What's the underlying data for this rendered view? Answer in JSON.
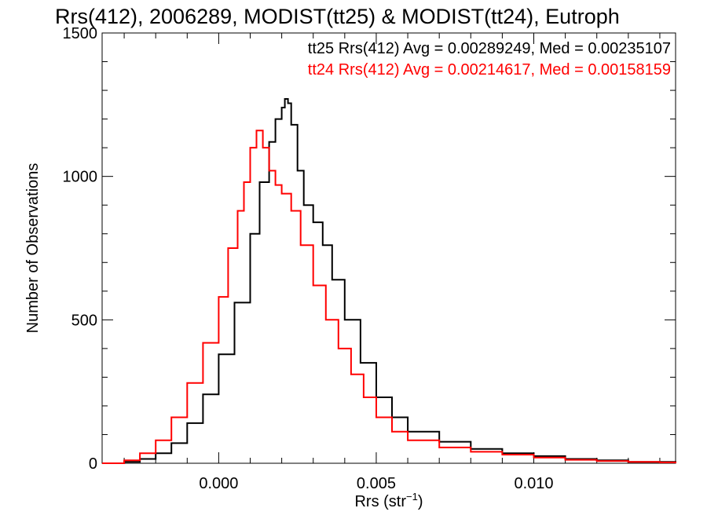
{
  "chart_data": {
    "type": "line",
    "step": true,
    "title": "Rrs(412), 2006289, MODIST(tt25) & MODIST(tt24), Eutroph",
    "xlabel": "Rrs (str",
    "xlabel_sup": "−1",
    "xlabel_end": ")",
    "ylabel": "Number of Observations",
    "xlim": [
      -0.0037,
      0.0145
    ],
    "ylim": [
      0,
      1500
    ],
    "xticks": [
      0.0,
      0.005,
      0.01
    ],
    "xtick_labels": [
      "0.000",
      "0.005",
      "0.010"
    ],
    "yticks": [
      0,
      500,
      1000,
      1500
    ],
    "ytick_labels": [
      "0",
      "500",
      "1000",
      "1500"
    ],
    "grid": false,
    "legend_position": "top-right",
    "series": [
      {
        "name": "tt25 Rrs(412) Avg = 0.00289249, Med = 0.00235107",
        "color": "#000000",
        "x": [
          -0.0037,
          -0.003,
          -0.0025,
          -0.002,
          -0.0015,
          -0.001,
          -0.0005,
          0.0,
          0.0005,
          0.001,
          0.0013,
          0.0016,
          0.0018,
          0.002,
          0.0021,
          0.0022,
          0.0023,
          0.0025,
          0.0027,
          0.003,
          0.0033,
          0.0036,
          0.004,
          0.0045,
          0.005,
          0.0055,
          0.006,
          0.007,
          0.008,
          0.009,
          0.01,
          0.011,
          0.012,
          0.013,
          0.014,
          0.0145
        ],
        "y": [
          0,
          5,
          15,
          35,
          70,
          140,
          240,
          380,
          560,
          800,
          980,
          1120,
          1200,
          1240,
          1270,
          1255,
          1180,
          1020,
          900,
          840,
          760,
          640,
          500,
          350,
          230,
          160,
          110,
          75,
          50,
          35,
          25,
          15,
          10,
          5,
          5,
          0
        ]
      },
      {
        "name": "tt24 Rrs(412) Avg = 0.00214617, Med = 0.00158159",
        "color": "#ff0000",
        "x": [
          -0.0037,
          -0.003,
          -0.0025,
          -0.002,
          -0.0015,
          -0.001,
          -0.0005,
          0.0,
          0.0003,
          0.0006,
          0.0008,
          0.001,
          0.0012,
          0.0014,
          0.0016,
          0.0018,
          0.002,
          0.0023,
          0.0026,
          0.003,
          0.0034,
          0.0038,
          0.0042,
          0.0046,
          0.005,
          0.0055,
          0.006,
          0.007,
          0.008,
          0.009,
          0.01,
          0.011,
          0.012,
          0.013,
          0.014,
          0.0145
        ],
        "y": [
          0,
          10,
          35,
          80,
          160,
          280,
          420,
          580,
          750,
          880,
          980,
          1100,
          1160,
          1100,
          1020,
          970,
          940,
          880,
          760,
          620,
          500,
          400,
          310,
          230,
          160,
          110,
          80,
          55,
          40,
          30,
          20,
          12,
          8,
          5,
          3,
          0
        ]
      }
    ]
  }
}
